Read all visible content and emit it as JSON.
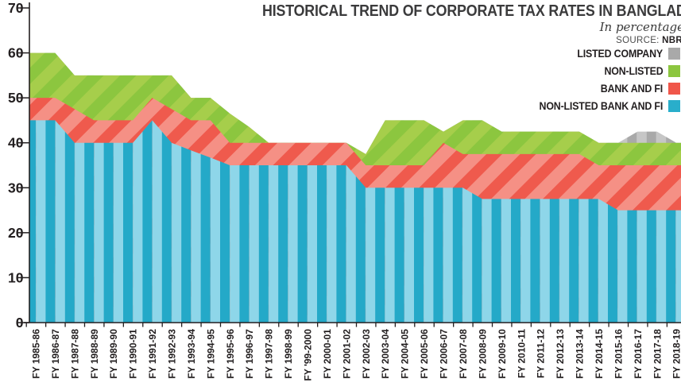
{
  "chart_data": {
    "type": "area",
    "title": "HISTORICAL TREND OF CORPORATE TAX RATES IN BANGLADESH",
    "subtitle": "In percentage",
    "source_label": "SOURCE:",
    "source_value": "NBR",
    "ylim": [
      0,
      70
    ],
    "yticks": [
      0,
      10,
      20,
      30,
      40,
      50,
      60,
      70
    ],
    "grid": false,
    "legend_position": "top-right",
    "years": [
      "FY 1985-86",
      "FY 1986-87",
      "FY 1987-88",
      "FY 1988-89",
      "FY 1989-90",
      "FY 1990-91",
      "FY 1991-92",
      "FY 1992-93",
      "FY 1993-94",
      "FY 1994-95",
      "FY 1995-96",
      "FY 1996-97",
      "FY 1997-98",
      "FY 1998-99",
      "FY '99-2000",
      "FY 2000-01",
      "FY 2001-02",
      "FY 2002-03",
      "FY 2003-04",
      "FY 2004-05",
      "FY 2005-06",
      "FY 2006-07",
      "FY 2007-08",
      "FY 2008-09",
      "FY 2009-10",
      "FY 2010-11",
      "FY 2011-12",
      "FY 2012-13",
      "FY 2013-14",
      "FY 2014-15",
      "FY 2015-16",
      "FY 2016-17",
      "FY 2017-18",
      "FY 2018-19"
    ],
    "series": [
      {
        "name": "LISTED COMPANY",
        "key": "gray",
        "values": [
          60,
          60,
          55,
          55,
          55,
          55,
          55,
          55,
          50,
          50,
          46.5,
          43.5,
          40,
          40,
          40,
          40,
          40,
          37.5,
          45,
          45,
          45,
          42.5,
          45,
          45,
          42.5,
          42.5,
          42.5,
          42.5,
          42.5,
          40,
          40,
          42.5,
          42.5,
          40
        ]
      },
      {
        "name": "NON-LISTED",
        "key": "green",
        "values": [
          60,
          60,
          55,
          55,
          55,
          55,
          55,
          55,
          50,
          50,
          46.5,
          43.5,
          40,
          40,
          40,
          40,
          40,
          37.5,
          45,
          45,
          45,
          42.5,
          45,
          45,
          42.5,
          42.5,
          42.5,
          42.5,
          42.5,
          40,
          40,
          40,
          40,
          40
        ]
      },
      {
        "name": "BANK AND FI",
        "key": "red",
        "values": [
          50,
          50,
          47.5,
          45,
          45,
          45,
          50,
          47.5,
          45,
          45,
          40,
          40,
          40,
          40,
          40,
          40,
          40,
          35,
          35,
          35,
          35,
          40,
          37.5,
          37.5,
          37.5,
          37.5,
          37.5,
          37.5,
          37.5,
          35,
          35,
          35,
          35,
          35
        ]
      },
      {
        "name": "NON-LISTED BANK AND FI",
        "key": "blue",
        "values": [
          45,
          45,
          40,
          40,
          40,
          40,
          45,
          40,
          38.3,
          36.7,
          35,
          35,
          35,
          35,
          35,
          35,
          35,
          30,
          30,
          30,
          30,
          30,
          30,
          27.5,
          27.5,
          27.5,
          27.5,
          27.5,
          27.5,
          27.5,
          25,
          25,
          25,
          25
        ]
      }
    ],
    "colors": {
      "gray": {
        "dark": "#a9a9a9",
        "light": "#c6c6c6",
        "swatch": "#a9a9a9"
      },
      "green": {
        "dark": "#8cc63f",
        "light": "#a6ce4b",
        "swatch": "#8cc63f"
      },
      "red": {
        "dark": "#ef5a4d",
        "light": "#f59085",
        "swatch": "#f0564a"
      },
      "blue": {
        "dark": "#24a9c8",
        "light": "#8ed6e9",
        "swatch": "#29aecb"
      }
    },
    "axis_color": "#231f20"
  },
  "legend": {
    "items": [
      {
        "label": "LISTED COMPANY",
        "key": "gray"
      },
      {
        "label": "NON-LISTED",
        "key": "green"
      },
      {
        "label": "BANK AND FI",
        "key": "red"
      },
      {
        "label": "NON-LISTED BANK AND FI",
        "key": "blue"
      }
    ]
  }
}
